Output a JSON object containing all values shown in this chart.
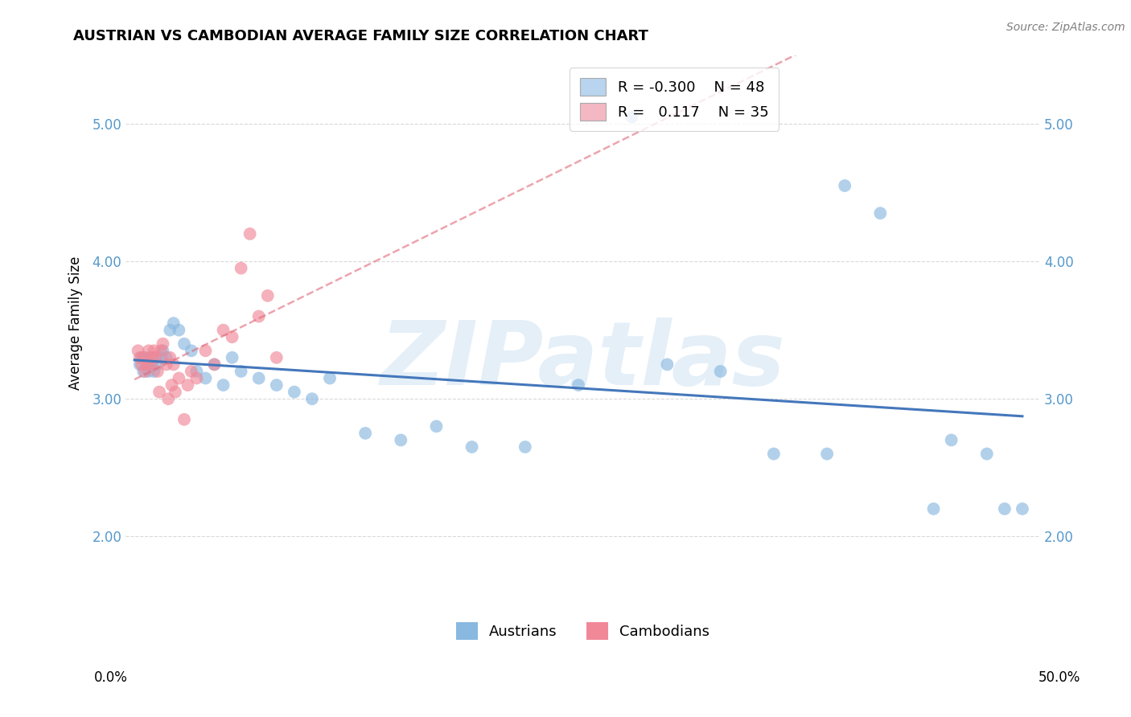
{
  "title": "AUSTRIAN VS CAMBODIAN AVERAGE FAMILY SIZE CORRELATION CHART",
  "source": "Source: ZipAtlas.com",
  "ylabel": "Average Family Size",
  "yticks": [
    2.0,
    3.0,
    4.0,
    5.0
  ],
  "watermark": "ZIPatlas",
  "legend_blue_R": "-0.300",
  "legend_blue_N": "48",
  "legend_pink_R": "0.117",
  "legend_pink_N": "35",
  "blue_scatter_color": "#89b8e0",
  "pink_scatter_color": "#f08898",
  "blue_line_color": "#4477bb",
  "pink_line_color": "#e06878",
  "grid_color": "#d0d0d0",
  "background_color": "#ffffff",
  "legend_blue_patch": "#b8d4ee",
  "legend_pink_patch": "#f4b8c4",
  "aus_x": [
    0.3,
    0.4,
    0.5,
    0.6,
    0.7,
    0.8,
    0.9,
    1.0,
    1.1,
    1.2,
    1.3,
    1.5,
    1.6,
    1.8,
    2.0,
    2.2,
    2.5,
    2.8,
    3.2,
    3.5,
    4.0,
    4.5,
    5.0,
    5.5,
    6.0,
    7.0,
    8.0,
    9.0,
    10.0,
    11.0,
    13.0,
    15.0,
    17.0,
    19.0,
    22.0,
    25.0,
    28.0,
    30.0,
    33.0,
    36.0,
    39.0,
    40.0,
    42.0,
    45.0,
    46.0,
    48.0,
    49.0,
    50.0
  ],
  "aus_y": [
    3.25,
    3.3,
    3.2,
    3.3,
    3.25,
    3.2,
    3.3,
    3.25,
    3.2,
    3.3,
    3.25,
    3.3,
    3.35,
    3.3,
    3.5,
    3.55,
    3.5,
    3.4,
    3.35,
    3.2,
    3.15,
    3.25,
    3.1,
    3.3,
    3.2,
    3.15,
    3.1,
    3.05,
    3.0,
    3.15,
    2.75,
    2.7,
    2.8,
    2.65,
    2.65,
    3.1,
    5.05,
    3.25,
    3.2,
    2.6,
    2.6,
    4.55,
    4.35,
    2.2,
    2.7,
    2.6,
    2.2,
    2.2
  ],
  "cam_x": [
    0.2,
    0.3,
    0.4,
    0.5,
    0.6,
    0.7,
    0.8,
    0.9,
    1.0,
    1.1,
    1.2,
    1.3,
    1.5,
    1.6,
    1.8,
    2.0,
    2.2,
    2.5,
    2.8,
    3.0,
    3.2,
    3.5,
    4.0,
    4.5,
    5.0,
    5.5,
    6.0,
    6.5,
    7.0,
    7.5,
    8.0,
    1.4,
    2.1,
    1.9,
    2.3
  ],
  "cam_y": [
    3.35,
    3.3,
    3.25,
    3.3,
    3.2,
    3.25,
    3.35,
    3.25,
    3.3,
    3.35,
    3.3,
    3.2,
    3.35,
    3.4,
    3.25,
    3.3,
    3.25,
    3.15,
    2.85,
    3.1,
    3.2,
    3.15,
    3.35,
    3.25,
    3.5,
    3.45,
    3.95,
    4.2,
    3.6,
    3.75,
    3.3,
    3.05,
    3.1,
    3.0,
    3.05
  ]
}
